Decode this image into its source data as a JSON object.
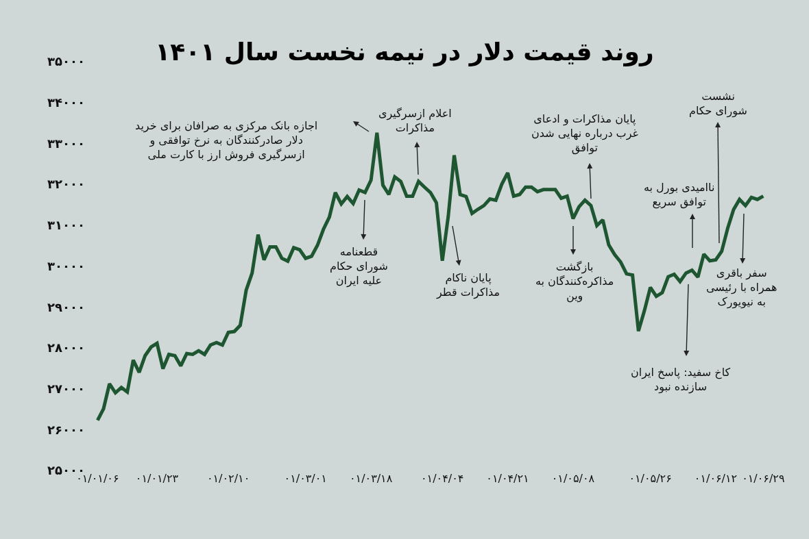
{
  "chart_data": {
    "type": "line",
    "title": "روند قیمت دلار در نیمه نخست سال ۱۴۰۱",
    "categories": [
      "۰۱/۰۱/۰۶",
      null,
      null,
      null,
      null,
      null,
      null,
      null,
      null,
      null,
      "۰۱/۰۱/۲۳",
      null,
      null,
      null,
      null,
      null,
      null,
      null,
      null,
      null,
      null,
      null,
      "۰۱/۰۲/۱۰",
      null,
      null,
      null,
      null,
      null,
      null,
      null,
      null,
      null,
      null,
      null,
      null,
      "۰۱/۰۳/۰۱",
      null,
      null,
      null,
      null,
      null,
      null,
      null,
      null,
      null,
      null,
      "۰۱/۰۳/۱۸",
      null,
      null,
      null,
      null,
      null,
      null,
      null,
      null,
      null,
      null,
      null,
      "۰۱/۰۴/۰۴",
      null,
      null,
      null,
      null,
      null,
      null,
      null,
      null,
      null,
      null,
      "۰۱/۰۴/۲۱",
      null,
      null,
      null,
      null,
      null,
      null,
      null,
      null,
      null,
      null,
      "۰۱/۰۵/۰۸",
      null,
      null,
      null,
      null,
      null,
      null,
      null,
      null,
      null,
      null,
      null,
      null,
      "۰۱/۰۵/۲۶",
      null,
      null,
      null,
      null,
      null,
      null,
      null,
      null,
      null,
      null,
      "۰۱/۰۶/۱۲",
      null,
      null,
      null,
      null,
      null,
      null,
      null,
      "۰۱/۰۶/۲۹"
    ],
    "series": [
      {
        "color": "#1e5631",
        "values": [
          26230,
          26510,
          27120,
          26900,
          27030,
          26920,
          27700,
          27400,
          27810,
          28020,
          28110,
          27490,
          27840,
          27810,
          27560,
          27860,
          27840,
          27930,
          27840,
          28070,
          28130,
          28070,
          28380,
          28400,
          28550,
          29410,
          29830,
          30770,
          30150,
          30470,
          30470,
          30190,
          30120,
          30450,
          30400,
          30190,
          30240,
          30510,
          30900,
          31200,
          31800,
          31520,
          31700,
          31530,
          31860,
          31800,
          32100,
          33260,
          31980,
          31750,
          32180,
          32070,
          31710,
          31710,
          32070,
          31930,
          31800,
          31550,
          30130,
          31220,
          32710,
          31750,
          31700,
          31290,
          31390,
          31480,
          31640,
          31610,
          32000,
          32280,
          31710,
          31750,
          31930,
          31930,
          31820,
          31870,
          31870,
          31870,
          31660,
          31710,
          31160,
          31450,
          31610,
          31480,
          30990,
          31130,
          30520,
          30280,
          30100,
          29810,
          29780,
          28410,
          28910,
          29480,
          29260,
          29350,
          29740,
          29800,
          29620,
          29830,
          29900,
          29730,
          30290,
          30130,
          30150,
          30360,
          30920,
          31380,
          31630,
          31480,
          31680,
          31630,
          31710
        ]
      }
    ],
    "ylim": [
      25000,
      35000
    ],
    "yticks": [
      {
        "value": 25000,
        "label": "۲۵۰۰۰"
      },
      {
        "value": 26000,
        "label": "۲۶۰۰۰"
      },
      {
        "value": 27000,
        "label": "۲۷۰۰۰"
      },
      {
        "value": 28000,
        "label": "۲۸۰۰۰"
      },
      {
        "value": 29000,
        "label": "۲۹۰۰۰"
      },
      {
        "value": 30000,
        "label": "۳۰۰۰۰"
      },
      {
        "value": 31000,
        "label": "۳۱۰۰۰"
      },
      {
        "value": 32000,
        "label": "۳۲۰۰۰"
      },
      {
        "value": 33000,
        "label": "۳۳۰۰۰"
      },
      {
        "value": 34000,
        "label": "۳۴۰۰۰"
      },
      {
        "value": 35000,
        "label": "۳۵۰۰۰"
      }
    ],
    "annotations": [
      "اجازه بانک مرکزی به صرافان برای خرید\nدلار صادرکنندگان به نرخ توافقی و\nازسرگیری فروش ارز با کارت ملی",
      "اعلام ازسرگیری\nمذاکرات",
      "قطعنامه\nشورای حکام\nعلیه ایران",
      "پایان ناکام\nمذاکرات قطر",
      "پایان مذاکرات و ادعای\nغرب درباره نهایی شدن\nتوافق",
      "بازگشت\nمذاکره‌کنندگان به\nوین",
      "ناامیدی بورل به\nتوافق سریع",
      "نشست\nشورای حکام",
      "سفر باقری\nهمراه با رئیسی\nبه نیویورک",
      "کاخ سفید: پاسخ ایران\nسازنده نبود"
    ]
  }
}
